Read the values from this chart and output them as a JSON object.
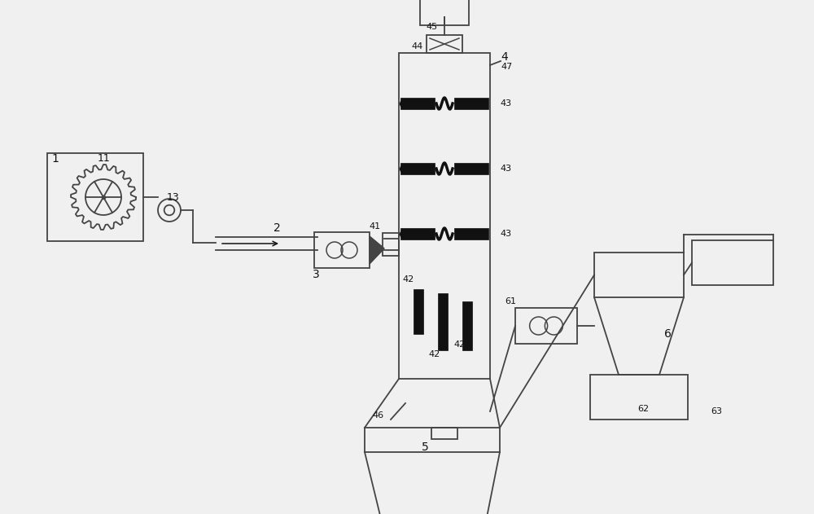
{
  "bg_color": "#f0f0f0",
  "lc": "#444444",
  "bk": "#111111",
  "white": "#f0f0f0",
  "figsize": [
    10.0,
    6.31
  ],
  "dpi": 100
}
